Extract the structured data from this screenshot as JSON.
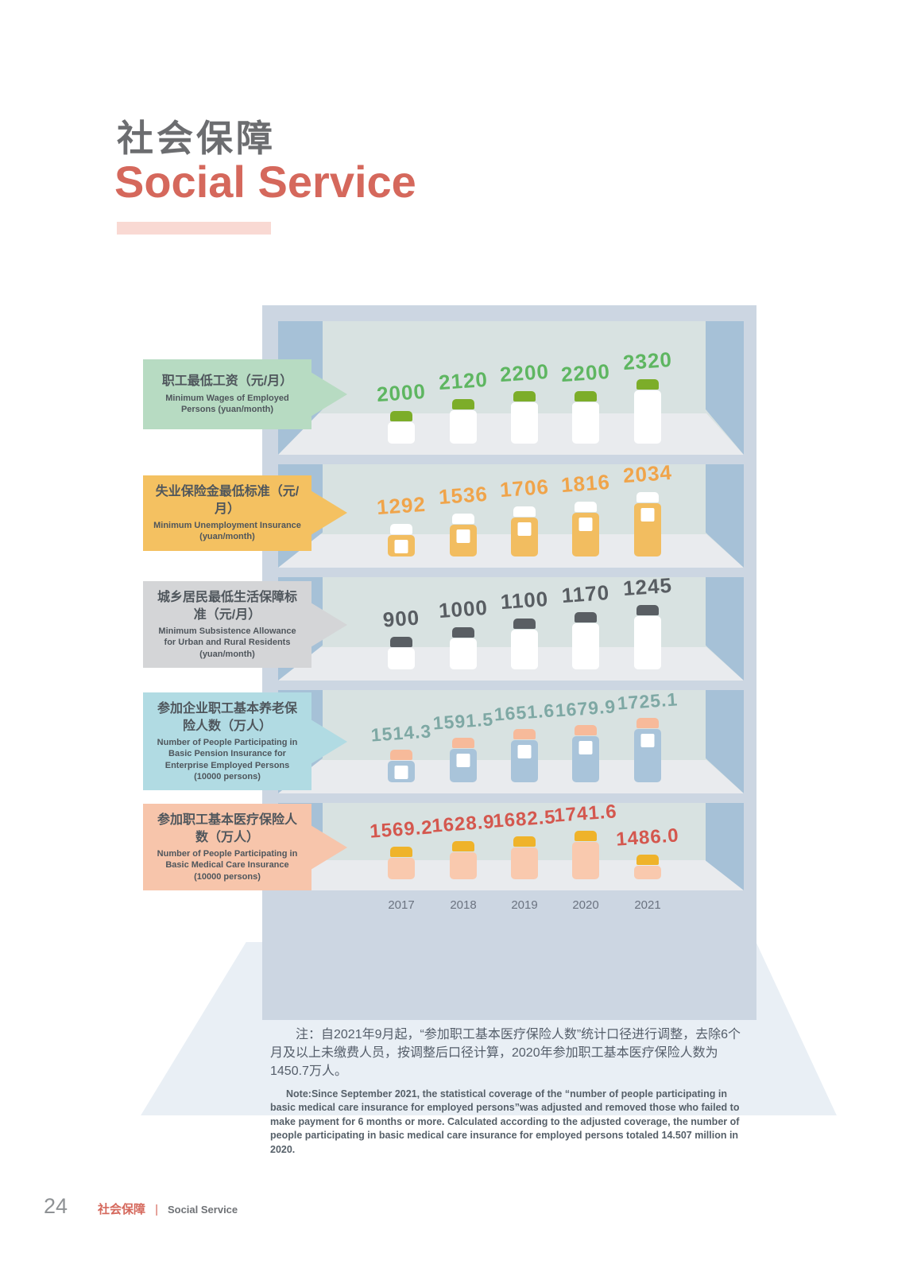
{
  "header": {
    "title_zh": "社会保障",
    "title_en": "Social Service"
  },
  "footer": {
    "page_number": "24",
    "label_zh": "社会保障",
    "divider": "|",
    "label_en": "Social Service"
  },
  "chart_data": {
    "type": "bar",
    "categories": [
      "2017",
      "2018",
      "2019",
      "2020",
      "2021"
    ],
    "legend_position": "left-callouts",
    "grid": false,
    "series": [
      {
        "label_zh": "职工最低工资（元/月）",
        "label_en": "Minimum Wages of Employed Persons (yuan/month)",
        "values": [
          2000,
          2120,
          2200,
          2200,
          2320
        ],
        "value_labels": [
          "2000",
          "2120",
          "2200",
          "2200",
          "2320"
        ],
        "colors": {
          "callout_bg": "#b7dbc2",
          "value_text": "#5eb661",
          "cap": "#7cad29",
          "body": "#ffffff",
          "sticker": null
        }
      },
      {
        "label_zh": "失业保险金最低标准（元/月）",
        "label_en": "Minimum Unemployment Insurance (yuan/month)",
        "values": [
          1292,
          1536,
          1706,
          1816,
          2034
        ],
        "value_labels": [
          "1292",
          "1536",
          "1706",
          "1816",
          "2034"
        ],
        "colors": {
          "callout_bg": "#f4c161",
          "value_text": "#f0a44a",
          "cap": "#ffffff",
          "body": "#f2bd60",
          "sticker": "#ffffff"
        }
      },
      {
        "label_zh": "城乡居民最低生活保障标准（元/月）",
        "label_en": "Minimum Subsistence Allowance for Urban and Rural Residents (yuan/month)",
        "values": [
          900,
          1000,
          1100,
          1170,
          1245
        ],
        "value_labels": [
          "900",
          "1000",
          "1100",
          "1170",
          "1245"
        ],
        "colors": {
          "callout_bg": "#d4d5d7",
          "value_text": "#585d62",
          "cap": "#595e63",
          "body": "#ffffff",
          "sticker": null
        }
      },
      {
        "label_zh": "参加企业职工基本养老保险人数（万人）",
        "label_en": "Number of People Participating in Basic Pension Insurance for Enterprise Employed Persons (10000 persons)",
        "values": [
          1514.3,
          1591.5,
          1651.6,
          1679.9,
          1725.1
        ],
        "value_labels": [
          "1514.3",
          "1591.5",
          "1651.6",
          "1679.9",
          "1725.1"
        ],
        "colors": {
          "callout_bg": "#b1dbe3",
          "value_text": "#7ea8a4",
          "cap": "#f7ba9a",
          "body": "#a9c4da",
          "sticker": "#ffffff"
        }
      },
      {
        "label_zh": "参加职工基本医疗保险人数（万人）",
        "label_en": "Number of People Participating  in Basic Medical Care Insurance (10000 persons)",
        "values": [
          1569.2,
          1628.9,
          1682.5,
          1741.6,
          1486.0
        ],
        "value_labels": [
          "1569.2",
          "1628.9",
          "1682.5",
          "1741.6",
          "1486.0"
        ],
        "colors": {
          "callout_bg": "#f7c5ab",
          "value_text": "#d4574e",
          "cap": "#efb32a",
          "body": "#f9c9ae",
          "sticker": null
        }
      }
    ],
    "note_zh": "注：自2021年9月起，“参加职工基本医疗保险人数”统计口径进行调整，去除6个月及以上未缴费人员，按调整后口径计算，2020年参加职工基本医疗保险人数为1450.7万人。",
    "note_en": "Note:Since September 2021, the statistical coverage of the “number of people participating in basic medical care insurance for employed persons”was adjusted and removed those who failed to make payment for 6 months or more. Calculated according to the adjusted coverage, the number of people participating in basic medical care insurance for employed persons totaled 14.507 million in 2020."
  }
}
